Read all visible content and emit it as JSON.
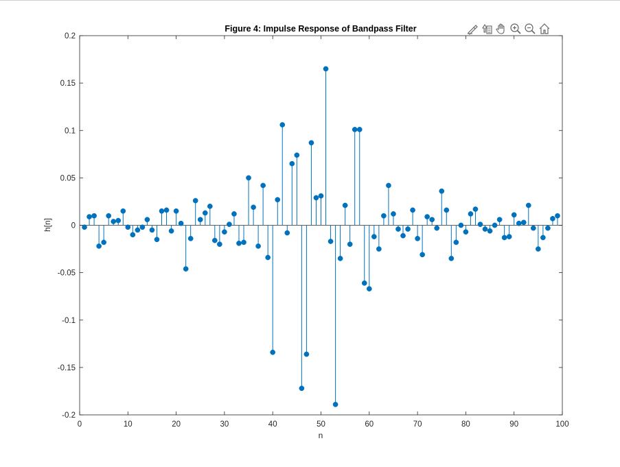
{
  "chart_data": {
    "type": "stem",
    "title": "Figure 4: Impulse Response of Bandpass Filter",
    "xlabel": "n",
    "ylabel": "h[n]",
    "xlim": [
      0,
      100
    ],
    "ylim": [
      -0.2,
      0.2
    ],
    "xticks": [
      0,
      10,
      20,
      30,
      40,
      50,
      60,
      70,
      80,
      90,
      100
    ],
    "xtick_labels": [
      "0",
      "10",
      "20",
      "30",
      "40",
      "50",
      "60",
      "70",
      "80",
      "90",
      "100"
    ],
    "yticks": [
      -0.2,
      -0.15,
      -0.1,
      -0.05,
      0,
      0.05,
      0.1,
      0.15,
      0.2
    ],
    "ytick_labels": [
      "-0.2",
      "-0.15",
      "-0.1",
      "-0.05",
      "0",
      "0.05",
      "0.1",
      "0.15",
      "0.2"
    ],
    "grid": false,
    "color": "#0072BD",
    "x": [
      1,
      2,
      3,
      4,
      5,
      6,
      7,
      8,
      9,
      10,
      11,
      12,
      13,
      14,
      15,
      16,
      17,
      18,
      19,
      20,
      21,
      22,
      23,
      24,
      25,
      26,
      27,
      28,
      29,
      30,
      31,
      32,
      33,
      34,
      35,
      36,
      37,
      38,
      39,
      40,
      41,
      42,
      43,
      44,
      45,
      46,
      47,
      48,
      49,
      50,
      51,
      52,
      53,
      54,
      55,
      56,
      57,
      58,
      59,
      60,
      61,
      62,
      63,
      64,
      65,
      66,
      67,
      68,
      69,
      70,
      71,
      72,
      73,
      74,
      75,
      76,
      77,
      78,
      79,
      80,
      81,
      82,
      83,
      84,
      85,
      86,
      87,
      88,
      89,
      90,
      91,
      92,
      93,
      94,
      95,
      96,
      97,
      98,
      99
    ],
    "values": [
      -0.002,
      0.009,
      0.01,
      -0.022,
      -0.018,
      0.01,
      0.004,
      0.005,
      0.015,
      -0.002,
      -0.01,
      -0.005,
      -0.002,
      0.006,
      -0.005,
      -0.015,
      0.015,
      0.016,
      -0.006,
      0.015,
      0.002,
      -0.046,
      -0.014,
      0.026,
      0.006,
      0.013,
      0.02,
      -0.016,
      -0.02,
      -0.007,
      0.001,
      0.012,
      -0.019,
      -0.018,
      0.05,
      0.019,
      -0.022,
      0.042,
      -0.034,
      -0.134,
      0.027,
      0.106,
      -0.008,
      0.065,
      0.074,
      -0.172,
      -0.136,
      0.087,
      0.029,
      0.031,
      0.165,
      -0.017,
      -0.189,
      -0.035,
      0.021,
      -0.02,
      0.101,
      0.101,
      -0.061,
      -0.067,
      -0.012,
      -0.025,
      0.01,
      0.042,
      0.012,
      -0.004,
      -0.011,
      -0.004,
      0.016,
      -0.014,
      -0.031,
      0.009,
      0.006,
      -0.003,
      0.036,
      0.016,
      -0.035,
      -0.018,
      0.0,
      -0.007,
      0.012,
      0.017,
      0.001,
      -0.004,
      -0.006,
      0.0,
      0.006,
      -0.013,
      -0.012,
      0.011,
      0.002,
      0.003,
      0.021,
      -0.003,
      -0.025,
      -0.013,
      -0.003,
      0.007,
      0.01
    ]
  },
  "toolbar": {
    "icons": [
      "brush-icon",
      "data-tips-icon",
      "pan-icon",
      "zoom-in-icon",
      "zoom-out-icon",
      "home-icon"
    ]
  }
}
